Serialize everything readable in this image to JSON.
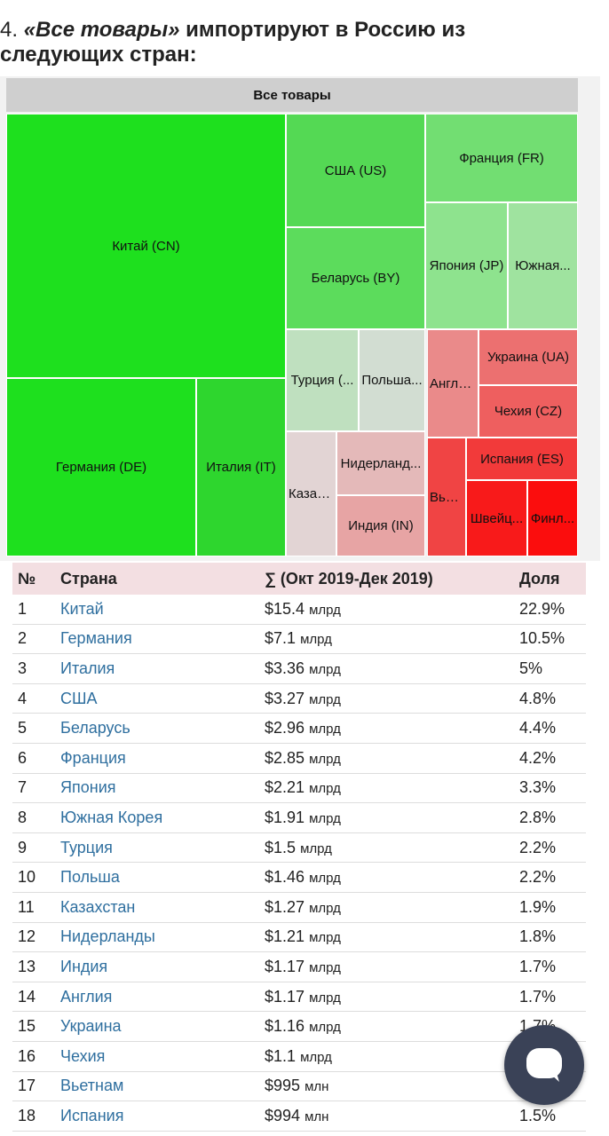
{
  "heading": {
    "number": "4.",
    "quoted": "«Все товары»",
    "rest": " импортируют в Россию из следующих стран:"
  },
  "treemap": {
    "header": "Все товары",
    "tiles": [
      {
        "label": "Китай (CN)",
        "color": "#1ee01e"
      },
      {
        "label": "Германия (DE)",
        "color": "#1ee01e"
      },
      {
        "label": "Италия (IT)",
        "color": "#2ed62e"
      },
      {
        "label": "США (US)",
        "color": "#54d954"
      },
      {
        "label": "Беларусь (BY)",
        "color": "#5cdc5c"
      },
      {
        "label": "Франция (FR)",
        "color": "#72de72"
      },
      {
        "label": "Япония (JP)",
        "color": "#8ee38e"
      },
      {
        "label": "Южная...",
        "color": "#9fe39f"
      },
      {
        "label": "Турция (...",
        "color": "#bfe0bf"
      },
      {
        "label": "Польша...",
        "color": "#d2ddd2"
      },
      {
        "label": "Казах...",
        "color": "#e2d4d4"
      },
      {
        "label": "Нидерланд...",
        "color": "#e4b9b9"
      },
      {
        "label": "Индия (IN)",
        "color": "#e7a4a4"
      },
      {
        "label": "Англи...",
        "color": "#ea8a8a"
      },
      {
        "label": "Украина (UA)",
        "color": "#ec7070"
      },
      {
        "label": "Чехия (CZ)",
        "color": "#ee5f5f"
      },
      {
        "label": "Испания (ES)",
        "color": "#f23a3a"
      },
      {
        "label": "Вье...",
        "color": "#f04444"
      },
      {
        "label": "Швейц...",
        "color": "#f81a1a"
      },
      {
        "label": "Финл...",
        "color": "#fb0d0d"
      }
    ]
  },
  "table": {
    "headers": [
      "№",
      "Страна",
      "∑ (Окт 2019-Дек 2019)",
      "Доля"
    ],
    "rows": [
      {
        "n": "1",
        "country": "Китай",
        "amount": "$15.4",
        "unit": "млрд",
        "share": "22.9%"
      },
      {
        "n": "2",
        "country": "Германия",
        "amount": "$7.1",
        "unit": "млрд",
        "share": "10.5%"
      },
      {
        "n": "3",
        "country": "Италия",
        "amount": "$3.36",
        "unit": "млрд",
        "share": "5%"
      },
      {
        "n": "4",
        "country": "США",
        "amount": "$3.27",
        "unit": "млрд",
        "share": "4.8%"
      },
      {
        "n": "5",
        "country": "Беларусь",
        "amount": "$2.96",
        "unit": "млрд",
        "share": "4.4%"
      },
      {
        "n": "6",
        "country": "Франция",
        "amount": "$2.85",
        "unit": "млрд",
        "share": "4.2%"
      },
      {
        "n": "7",
        "country": "Япония",
        "amount": "$2.21",
        "unit": "млрд",
        "share": "3.3%"
      },
      {
        "n": "8",
        "country": "Южная Корея",
        "amount": "$1.91",
        "unit": "млрд",
        "share": "2.8%"
      },
      {
        "n": "9",
        "country": "Турция",
        "amount": "$1.5",
        "unit": "млрд",
        "share": "2.2%"
      },
      {
        "n": "10",
        "country": "Польша",
        "amount": "$1.46",
        "unit": "млрд",
        "share": "2.2%"
      },
      {
        "n": "11",
        "country": "Казахстан",
        "amount": "$1.27",
        "unit": "млрд",
        "share": "1.9%"
      },
      {
        "n": "12",
        "country": "Нидерланды",
        "amount": "$1.21",
        "unit": "млрд",
        "share": "1.8%"
      },
      {
        "n": "13",
        "country": "Индия",
        "amount": "$1.17",
        "unit": "млрд",
        "share": "1.7%"
      },
      {
        "n": "14",
        "country": "Англия",
        "amount": "$1.17",
        "unit": "млрд",
        "share": "1.7%"
      },
      {
        "n": "15",
        "country": "Украина",
        "amount": "$1.16",
        "unit": "млрд",
        "share": "1.7%"
      },
      {
        "n": "16",
        "country": "Чехия",
        "amount": "$1.1",
        "unit": "млрд",
        "share": ""
      },
      {
        "n": "17",
        "country": "Вьетнам",
        "amount": "$995",
        "unit": "млн",
        "share": ""
      },
      {
        "n": "18",
        "country": "Испания",
        "amount": "$994",
        "unit": "млн",
        "share": "1.5%"
      }
    ]
  },
  "chat": {
    "icon": "chat-bubble-icon",
    "color": "#3a4257"
  }
}
